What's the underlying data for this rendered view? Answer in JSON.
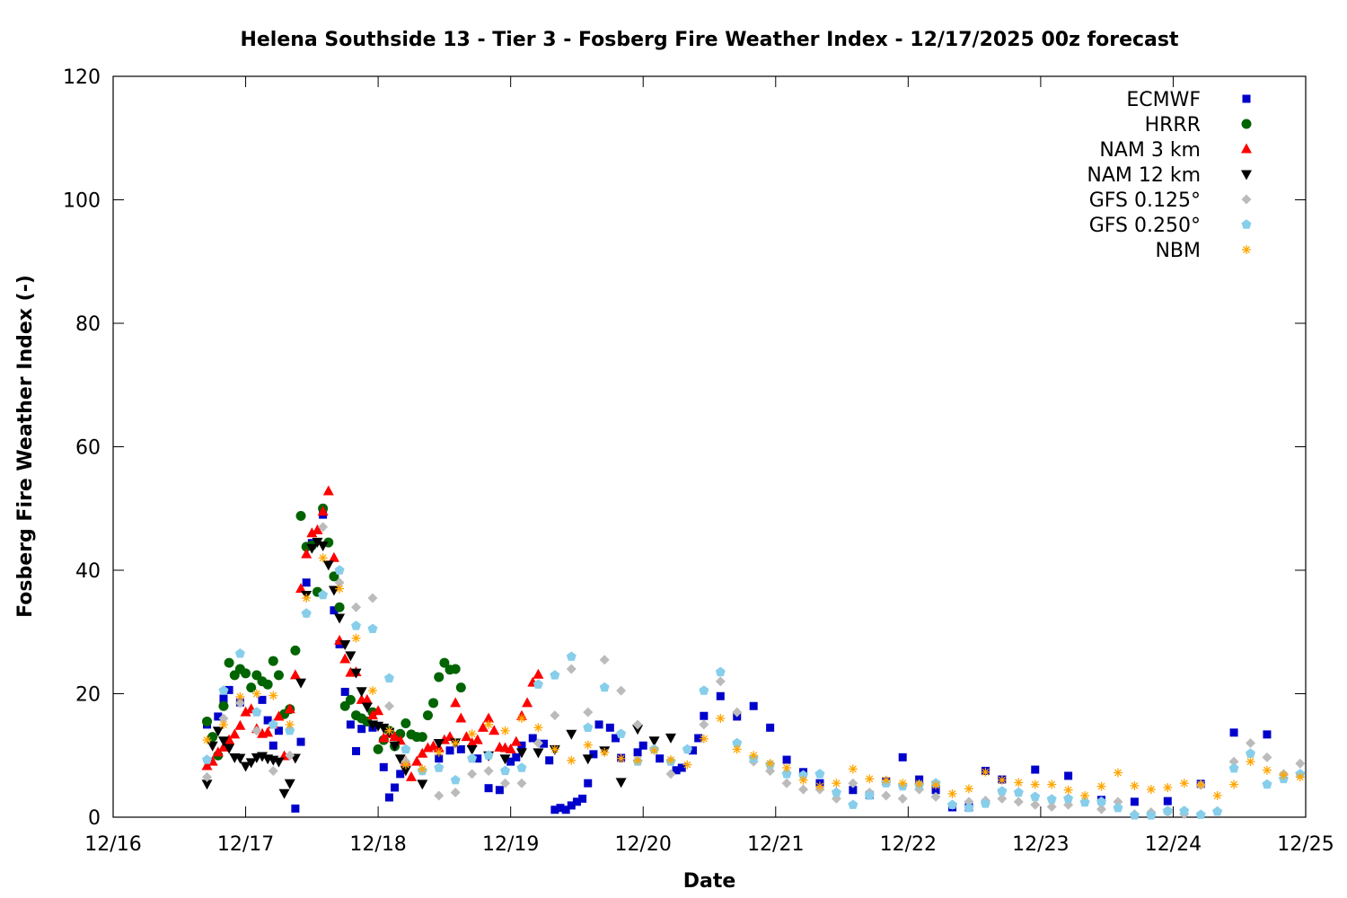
{
  "chart_data": {
    "type": "scatter",
    "title": "Helena Southside 13 - Tier 3 - Fosberg Fire Weather Index - 12/17/2025 00z forecast",
    "xlabel": "Date",
    "ylabel": "Fosberg Fire Weather Index (-)",
    "xlim": [
      "12/16",
      "12/25"
    ],
    "ylim": [
      0,
      120
    ],
    "x_ticks": [
      "12/16",
      "12/17",
      "12/18",
      "12/19",
      "12/20",
      "12/21",
      "12/22",
      "12/23",
      "12/24",
      "12/25"
    ],
    "y_ticks": [
      0,
      20,
      40,
      60,
      80,
      100,
      120
    ],
    "grid": false,
    "legend_placement": "top-right",
    "series": [
      {
        "name": "ECMWF",
        "color": "#0000cc",
        "marker": "square",
        "points": [
          [
            "12/16 17:00",
            15
          ],
          [
            "12/16 19:00",
            16.3
          ],
          [
            "12/16 20:00",
            19.2
          ],
          [
            "12/16 21:00",
            20.6
          ],
          [
            "12/16 23:00",
            18.6
          ],
          [
            "12/17 03:00",
            19
          ],
          [
            "12/17 04:00",
            15.7
          ],
          [
            "12/17 05:00",
            11.6
          ],
          [
            "12/17 06:00",
            14
          ],
          [
            "12/17 09:00",
            1.4
          ],
          [
            "12/17 10:00",
            12.2
          ],
          [
            "12/17 11:00",
            38
          ],
          [
            "12/17 12:00",
            44.4
          ],
          [
            "12/17 14:00",
            49
          ],
          [
            "12/17 16:00",
            33.5
          ],
          [
            "12/17 17:00",
            28
          ],
          [
            "12/17 18:00",
            20.3
          ],
          [
            "12/17 19:00",
            15
          ],
          [
            "12/17 20:00",
            10.7
          ],
          [
            "12/17 21:00",
            14.3
          ],
          [
            "12/17 23:00",
            14.5
          ],
          [
            "12/18 01:00",
            8.1
          ],
          [
            "12/18 02:00",
            3.2
          ],
          [
            "12/18 03:00",
            4.8
          ],
          [
            "12/18 04:00",
            7
          ],
          [
            "12/18 11:00",
            9.5
          ],
          [
            "12/18 13:00",
            10.8
          ],
          [
            "12/18 15:00",
            11
          ],
          [
            "12/18 18:00",
            9.5
          ],
          [
            "12/18 20:00",
            4.7
          ],
          [
            "12/18 22:00",
            4.4
          ],
          [
            "12/19 00:00",
            9
          ],
          [
            "12/19 01:00",
            9.7
          ],
          [
            "12/19 02:00",
            11.6
          ],
          [
            "12/19 04:00",
            12.8
          ],
          [
            "12/19 06:00",
            11.9
          ],
          [
            "12/19 07:00",
            9.2
          ],
          [
            "12/19 08:00",
            1.2
          ],
          [
            "12/19 09:00",
            1.5
          ],
          [
            "12/19 10:00",
            1.2
          ],
          [
            "12/19 11:00",
            1.9
          ],
          [
            "12/19 12:00",
            2.5
          ],
          [
            "12/19 13:00",
            3
          ],
          [
            "12/19 14:00",
            5.5
          ],
          [
            "12/19 15:00",
            10.2
          ],
          [
            "12/19 16:00",
            15
          ],
          [
            "12/19 18:00",
            14.5
          ],
          [
            "12/19 19:00",
            12.8
          ],
          [
            "12/19 20:00",
            9.6
          ],
          [
            "12/19 23:00",
            10.5
          ],
          [
            "12/20 00:00",
            11.6
          ],
          [
            "12/20 03:00",
            9.5
          ],
          [
            "12/20 06:00",
            7.6
          ],
          [
            "12/20 07:00",
            8
          ],
          [
            "12/20 09:00",
            10.8
          ],
          [
            "12/20 10:00",
            12.8
          ],
          [
            "12/20 11:00",
            16.4
          ],
          [
            "12/20 14:00",
            19.6
          ],
          [
            "12/20 17:00",
            16.3
          ],
          [
            "12/20 20:00",
            18
          ],
          [
            "12/20 23:00",
            14.5
          ],
          [
            "12/21 02:00",
            9.3
          ],
          [
            "12/21 05:00",
            7.3
          ],
          [
            "12/21 08:00",
            5.5
          ],
          [
            "12/21 14:00",
            4.4
          ],
          [
            "12/21 17:00",
            3.6
          ],
          [
            "12/21 20:00",
            5.8
          ],
          [
            "12/21 23:00",
            9.7
          ],
          [
            "12/22 02:00",
            6.1
          ],
          [
            "12/22 05:00",
            4.4
          ],
          [
            "12/22 08:00",
            1.6
          ],
          [
            "12/22 11:00",
            1.6
          ],
          [
            "12/22 14:00",
            7.5
          ],
          [
            "12/22 17:00",
            6.1
          ],
          [
            "12/22 23:00",
            7.7
          ],
          [
            "12/23 05:00",
            6.7
          ],
          [
            "12/23 11:00",
            2.8
          ],
          [
            "12/23 17:00",
            2.5
          ],
          [
            "12/23 23:00",
            2.6
          ],
          [
            "12/24 05:00",
            5.4
          ],
          [
            "12/24 11:00",
            13.7
          ],
          [
            "12/24 17:00",
            13.4
          ]
        ]
      },
      {
        "name": "HRRR",
        "color": "#006400",
        "marker": "circle",
        "start": "12/16 17:00",
        "step_hours": 1,
        "values": [
          15.5,
          13,
          10,
          18,
          25,
          23,
          24,
          23.3,
          21,
          23,
          22,
          21.5,
          25.3,
          23,
          16.7,
          17.5,
          27,
          48.8,
          43.8,
          44,
          36.5,
          50,
          44.5,
          39,
          34,
          18,
          19,
          16.5,
          16,
          15.5,
          17,
          11,
          12.5,
          14,
          11.5,
          13.5,
          15.2,
          13.4,
          13,
          13,
          16.5,
          18.5,
          22.7,
          25,
          23.9,
          24,
          21
        ]
      },
      {
        "name": "NAM 3 km",
        "color": "#ff0000",
        "marker": "triangle-up",
        "start": "12/16 17:00",
        "step_hours": 1,
        "values": [
          8.3,
          9,
          10.5,
          11.3,
          12.5,
          13.4,
          14.8,
          17,
          17.5,
          14.3,
          13.5,
          13.7,
          15,
          16.3,
          9.9,
          17.5,
          23,
          37,
          42.6,
          46,
          46.5,
          49.5,
          52.8,
          42,
          28.6,
          25.6,
          23.4,
          23.5,
          19,
          19,
          16.5,
          17.2,
          12.8,
          13.5,
          13,
          12.4,
          9,
          6.5,
          9,
          10.3,
          11.2,
          11.5,
          11.2,
          12.5,
          13,
          18.5,
          16,
          13,
          12,
          12.5,
          14.5,
          16,
          14,
          11.3,
          11.2,
          11,
          12.2,
          16.4,
          18.5,
          21.8,
          23.1
        ]
      },
      {
        "name": "NAM 12 km",
        "color": "#000000",
        "marker": "triangle-down",
        "start": "12/16 17:00",
        "step_hours": 1,
        "values": [
          5.4,
          11.6,
          14,
          12.4,
          11.2,
          9.7,
          9.6,
          8.3,
          8.9,
          9.7,
          9.9,
          9.5,
          9.3,
          9,
          3.9,
          5.5,
          9.6,
          21.8,
          36,
          43.6,
          44.6,
          44,
          40.9,
          36.8,
          32.3,
          28,
          26.2,
          23.4,
          20.4,
          17.9,
          15,
          14.8,
          14.5,
          13.8,
          11.6,
          9.5,
          7.6,
          null,
          null,
          5.4,
          null,
          null,
          12,
          null,
          null,
          12.1,
          null,
          null,
          11,
          null,
          null,
          10,
          null,
          null,
          9.5,
          null,
          null,
          10.5,
          null,
          null,
          10.5,
          null,
          null,
          11,
          null,
          null,
          13.5,
          null,
          null,
          9.5,
          null,
          null,
          10.8,
          null,
          null,
          5.7,
          null,
          null,
          14.3,
          null,
          null,
          12.4,
          null,
          null,
          12.9
        ]
      },
      {
        "name": "GFS 0.125°",
        "color": "#bbbbbb",
        "marker": "diamond",
        "start": "12/16 17:00",
        "step_hours": 3,
        "values": [
          6.5,
          16,
          18.5,
          14,
          7.5,
          10,
          33,
          47,
          38,
          34,
          35.5,
          18,
          9,
          7.5,
          3.5,
          4,
          7,
          7.5,
          5.5,
          5.5,
          12,
          16.5,
          24,
          17,
          25.5,
          20.5,
          15,
          11,
          7,
          11,
          15,
          22,
          17,
          9,
          7.5,
          5.5,
          4.5,
          4.5,
          3,
          5.5,
          4,
          3.5,
          3,
          4.5,
          3.3,
          2,
          2.5,
          2.7,
          3,
          2.5,
          2,
          1.7,
          2,
          2.5,
          1.3,
          2.5,
          0.5,
          0.8,
          0.8,
          0.5,
          5.2,
          1,
          9,
          12,
          9.7,
          7,
          8.7
        ]
      },
      {
        "name": "GFS 0.250°",
        "color": "#87ceeb",
        "marker": "pentagon",
        "start": "12/16 17:00",
        "step_hours": 3,
        "values": [
          9.3,
          20.5,
          26.5,
          17,
          15,
          14,
          33,
          36,
          40,
          31,
          30.5,
          22.5,
          11,
          7.5,
          8,
          6,
          9.5,
          10,
          7.5,
          8,
          21.5,
          23,
          26,
          14.5,
          21,
          13.5,
          9,
          11,
          9,
          11,
          20.5,
          23.5,
          12,
          9.5,
          8.5,
          7,
          6.8,
          7,
          4,
          2,
          3.5,
          5.5,
          5,
          5.2,
          5.5,
          2,
          1.5,
          2.2,
          4.2,
          4,
          3.3,
          2.9,
          3,
          2.4,
          2.5,
          1.5,
          0.3,
          0.3,
          1,
          1,
          0.4,
          0.9,
          7.9,
          10.3,
          5.3,
          6.2,
          7
        ]
      },
      {
        "name": "NBM",
        "color": "#ffa500",
        "marker": "asterisk",
        "start": "12/16 17:00",
        "step_hours": 3,
        "values": [
          12.5,
          15,
          19.5,
          20,
          19.7,
          15,
          35.5,
          42,
          37,
          29,
          20.5,
          14,
          8.5,
          7.8,
          10.5,
          12,
          13.5,
          15,
          14,
          16,
          14.5,
          11,
          9.2,
          11.7,
          10.5,
          9.5,
          9.2,
          10.8,
          9.3,
          8.5,
          12.7,
          16,
          11,
          10,
          8.7,
          8,
          6,
          5,
          5.5,
          7.8,
          6.2,
          6,
          5.5,
          5.4,
          5.2,
          3.8,
          4.6,
          7.3,
          6,
          5.6,
          5.3,
          5.3,
          4.4,
          3.5,
          5,
          7.2,
          5.1,
          4.5,
          4.8,
          5.5,
          5.3,
          3.5,
          5.3,
          9,
          7.6,
          6.8,
          6.5
        ]
      }
    ]
  }
}
